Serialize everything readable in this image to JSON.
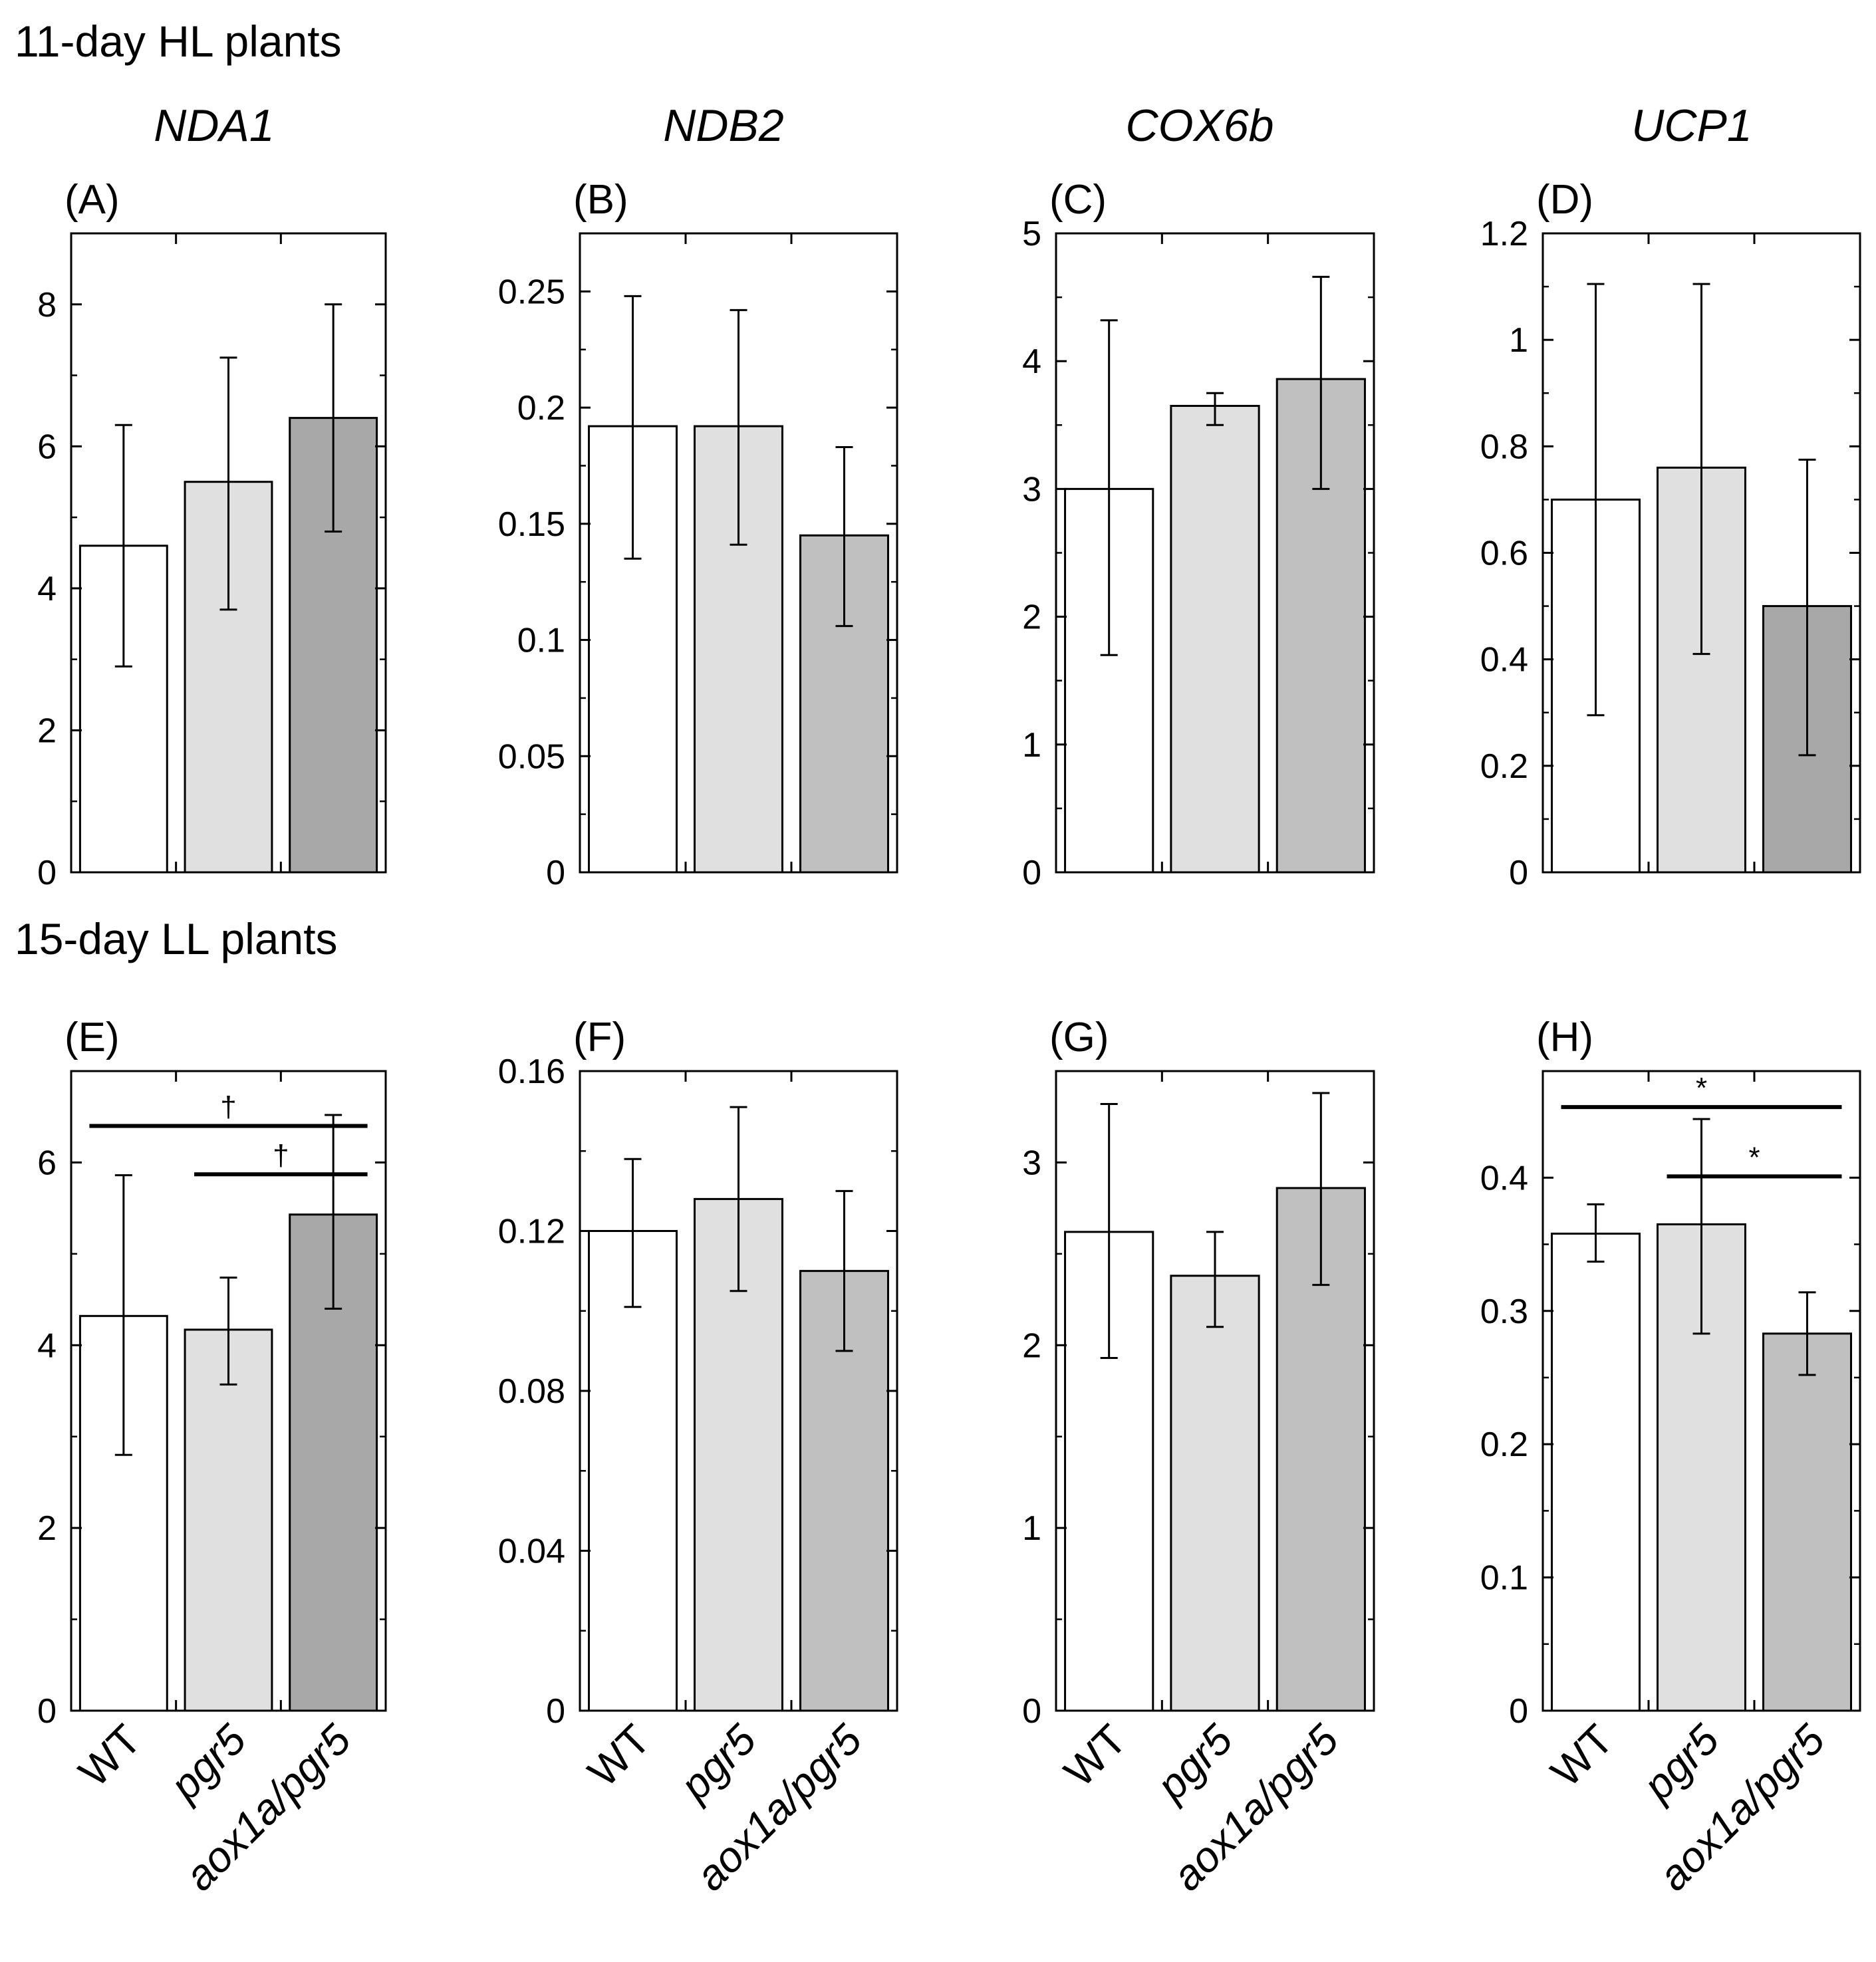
{
  "figure": {
    "row_titles": [
      "11-day HL plants",
      "15-day LL plants"
    ],
    "genes": [
      "NDA1",
      "NDB2",
      "COX6b",
      "UCP1"
    ],
    "genotypes": [
      {
        "label": "WT",
        "italic": false
      },
      {
        "label": "pgr5",
        "italic": true
      },
      {
        "label": "aox1a/pgr5",
        "italic": true
      }
    ],
    "bar_colors": [
      "#ffffff",
      "#e0e0e0",
      "#a8a8a8"
    ],
    "bar_colors_alt": [
      "#ffffff",
      "#e0e0e0",
      "#c0c0c0"
    ]
  },
  "chart_data": [
    {
      "panel": "(A)",
      "gene": "NDA1",
      "condition": "11-day HL plants",
      "type": "bar",
      "categories": [
        "WT",
        "pgr5",
        "aox1a/pgr5"
      ],
      "values": [
        4.6,
        5.5,
        6.4
      ],
      "errors": [
        [
          2.9,
          6.3
        ],
        [
          3.7,
          7.25
        ],
        [
          4.8,
          8.0
        ]
      ],
      "ylim": [
        0,
        9
      ],
      "yticks": [
        0,
        2,
        4,
        6,
        8
      ],
      "ytick_labels": [
        "0",
        "2",
        "4",
        "6",
        "8"
      ],
      "show_xlabels": false,
      "significance": []
    },
    {
      "panel": "(B)",
      "gene": "NDB2",
      "condition": "11-day HL plants",
      "type": "bar",
      "categories": [
        "WT",
        "pgr5",
        "aox1a/pgr5"
      ],
      "values": [
        0.192,
        0.192,
        0.145
      ],
      "errors": [
        [
          0.135,
          0.248
        ],
        [
          0.141,
          0.242
        ],
        [
          0.106,
          0.183
        ]
      ],
      "ylim": [
        0,
        0.275
      ],
      "yticks": [
        0,
        0.05,
        0.1,
        0.15,
        0.2,
        0.25
      ],
      "ytick_labels": [
        "0",
        "0.05",
        "0.1",
        "0.15",
        "0.2",
        "0.25"
      ],
      "show_xlabels": false,
      "significance": []
    },
    {
      "panel": "(C)",
      "gene": "COX6b",
      "condition": "11-day HL plants",
      "type": "bar",
      "categories": [
        "WT",
        "pgr5",
        "aox1a/pgr5"
      ],
      "values": [
        3.0,
        3.65,
        3.86
      ],
      "errors": [
        [
          1.7,
          4.32
        ],
        [
          3.5,
          3.75
        ],
        [
          3.0,
          4.66
        ]
      ],
      "ylim": [
        0,
        5
      ],
      "yticks": [
        0,
        1,
        2,
        3,
        4,
        5
      ],
      "ytick_labels": [
        "0",
        "1",
        "2",
        "3",
        "4",
        "5"
      ],
      "show_xlabels": false,
      "significance": []
    },
    {
      "panel": "(D)",
      "gene": "UCP1",
      "condition": "11-day HL plants",
      "type": "bar",
      "categories": [
        "WT",
        "pgr5",
        "aox1a/pgr5"
      ],
      "values": [
        0.7,
        0.76,
        0.5
      ],
      "errors": [
        [
          0.295,
          1.105
        ],
        [
          0.41,
          1.105
        ],
        [
          0.22,
          0.775
        ]
      ],
      "ylim": [
        0,
        1.2
      ],
      "yticks": [
        0,
        0.2,
        0.4,
        0.6,
        0.8,
        1,
        1.2
      ],
      "ytick_labels": [
        "0",
        "0.2",
        "0.4",
        "0.6",
        "0.8",
        "1",
        "1.2"
      ],
      "show_xlabels": false,
      "significance": []
    },
    {
      "panel": "(E)",
      "gene": "NDA1",
      "condition": "15-day LL plants",
      "type": "bar",
      "categories": [
        "WT",
        "pgr5",
        "aox1a/pgr5"
      ],
      "values": [
        4.32,
        4.17,
        5.43
      ],
      "errors": [
        [
          2.8,
          5.86
        ],
        [
          3.57,
          4.74
        ],
        [
          4.4,
          6.52
        ]
      ],
      "ylim": [
        0,
        7
      ],
      "yticks": [
        0,
        2,
        4,
        6
      ],
      "ytick_labels": [
        "0",
        "2",
        "4",
        "6"
      ],
      "show_xlabels": true,
      "significance": [
        {
          "from": 0,
          "to": 2,
          "level": 6.4,
          "mark": "†"
        },
        {
          "from": 1,
          "to": 2,
          "level": 5.87,
          "mark": "†"
        }
      ]
    },
    {
      "panel": "(F)",
      "gene": "NDB2",
      "condition": "15-day LL plants",
      "type": "bar",
      "categories": [
        "WT",
        "pgr5",
        "aox1a/pgr5"
      ],
      "values": [
        0.12,
        0.128,
        0.11
      ],
      "errors": [
        [
          0.101,
          0.138
        ],
        [
          0.105,
          0.151
        ],
        [
          0.09,
          0.13
        ]
      ],
      "ylim": [
        0,
        0.16
      ],
      "yticks": [
        0,
        0.04,
        0.08,
        0.12,
        0.16
      ],
      "ytick_labels": [
        "0",
        "0.04",
        "0.08",
        "0.12",
        "0.16"
      ],
      "show_xlabels": true,
      "significance": []
    },
    {
      "panel": "(G)",
      "gene": "COX6b",
      "condition": "15-day LL plants",
      "type": "bar",
      "categories": [
        "WT",
        "pgr5",
        "aox1a/pgr5"
      ],
      "values": [
        2.62,
        2.38,
        2.86
      ],
      "errors": [
        [
          1.93,
          3.32
        ],
        [
          2.1,
          2.62
        ],
        [
          2.33,
          3.38
        ]
      ],
      "ylim": [
        0,
        3.5
      ],
      "yticks": [
        0,
        1,
        2,
        3
      ],
      "ytick_labels": [
        "0",
        "1",
        "2",
        "3"
      ],
      "show_xlabels": true,
      "significance": []
    },
    {
      "panel": "(H)",
      "gene": "UCP1",
      "condition": "15-day LL plants",
      "type": "bar",
      "categories": [
        "WT",
        "pgr5",
        "aox1a/pgr5"
      ],
      "values": [
        0.358,
        0.365,
        0.283
      ],
      "errors": [
        [
          0.337,
          0.38
        ],
        [
          0.283,
          0.444
        ],
        [
          0.252,
          0.314
        ]
      ],
      "ylim": [
        0,
        0.48
      ],
      "yticks": [
        0,
        0.1,
        0.2,
        0.3,
        0.4
      ],
      "ytick_labels": [
        "0",
        "0.1",
        "0.2",
        "0.3",
        "0.4"
      ],
      "show_xlabels": true,
      "significance": [
        {
          "from": 0,
          "to": 2,
          "level": 0.453,
          "mark": "*"
        },
        {
          "from": 1,
          "to": 2,
          "level": 0.401,
          "mark": "*"
        }
      ]
    }
  ]
}
